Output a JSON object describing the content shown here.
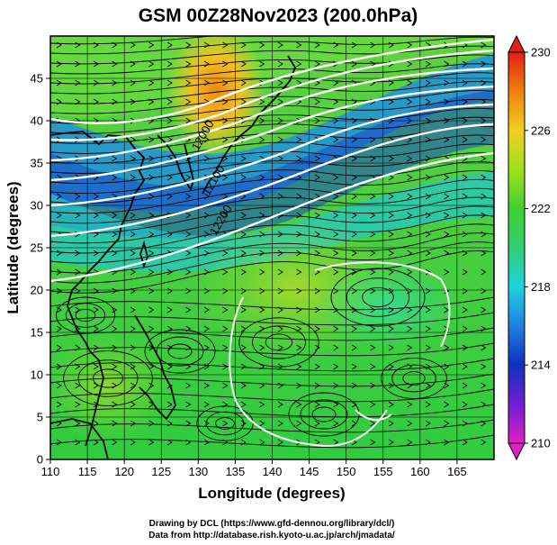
{
  "title": "GSM 00Z28Nov2023 (200.0hPa)",
  "credits": {
    "line1": "Drawing by DCL (https://www.gfd-dennou.org/library/dcl/)",
    "line2": "Data from http://database.rish.kyoto-u.ac.jp/arch/jmadata/"
  },
  "chart_data": {
    "type": "heatmap",
    "title": "GSM 00Z28Nov2023 (200.0hPa)",
    "xlabel": "Longitude (degrees)",
    "ylabel": "Latitude  (degrees)",
    "xlim": [
      110,
      170
    ],
    "ylim": [
      0,
      50
    ],
    "xticks": [
      110,
      115,
      120,
      125,
      130,
      135,
      140,
      145,
      150,
      155,
      160,
      165
    ],
    "yticks": [
      0,
      5,
      10,
      15,
      20,
      25,
      30,
      35,
      40,
      45
    ],
    "grid": true,
    "colorbar": {
      "min": 210,
      "max": 230,
      "tick_labels": [
        "210",
        "214",
        "218",
        "222",
        "226",
        "230"
      ],
      "colors": [
        "#e020c0",
        "#7020d0",
        "#1030c0",
        "#2080e0",
        "#20d0e0",
        "#30d070",
        "#40d030",
        "#a0e020",
        "#f0d020",
        "#f08010",
        "#e02010"
      ]
    },
    "contour_labels": [
      "12000",
      "12100",
      "12200"
    ]
  },
  "colors": {
    "land_outline": "#000000",
    "contour": "#ffffff",
    "streamline": "#000000"
  }
}
